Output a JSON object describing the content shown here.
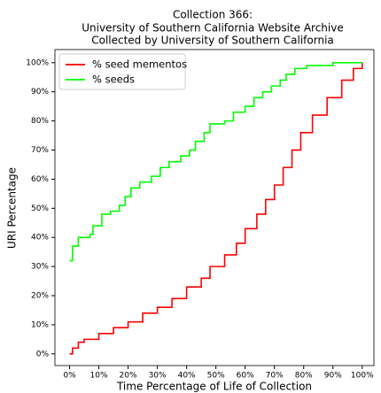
{
  "chart_data": {
    "type": "step",
    "title": [
      "Collection 366:",
      "University of Southern California Website Archive",
      "Collected by University of Southern California"
    ],
    "xlabel": "Time Percentage of Life of Collection",
    "ylabel": "URI Percentage",
    "xlim": [
      -5,
      104
    ],
    "ylim": [
      -4,
      104.5
    ],
    "xticks": [
      {
        "value": 0,
        "label": "0%"
      },
      {
        "value": 10,
        "label": "10%"
      },
      {
        "value": 20,
        "label": "20%"
      },
      {
        "value": 30,
        "label": "30%"
      },
      {
        "value": 40,
        "label": "40%"
      },
      {
        "value": 50,
        "label": "50%"
      },
      {
        "value": 60,
        "label": "60%"
      },
      {
        "value": 70,
        "label": "70%"
      },
      {
        "value": 80,
        "label": "80%"
      },
      {
        "value": 90,
        "label": "90%"
      },
      {
        "value": 100,
        "label": "100%"
      }
    ],
    "yticks": [
      {
        "value": 0,
        "label": "0%"
      },
      {
        "value": 10,
        "label": "10%"
      },
      {
        "value": 20,
        "label": "20%"
      },
      {
        "value": 30,
        "label": "30%"
      },
      {
        "value": 40,
        "label": "40%"
      },
      {
        "value": 50,
        "label": "50%"
      },
      {
        "value": 60,
        "label": "60%"
      },
      {
        "value": 70,
        "label": "70%"
      },
      {
        "value": 80,
        "label": "80%"
      },
      {
        "value": 90,
        "label": "90%"
      },
      {
        "value": 100,
        "label": "100%"
      }
    ],
    "legend": "upper left",
    "series": [
      {
        "name": "% seed mementos",
        "color": "#ff0000",
        "x": [
          0,
          1,
          3,
          5,
          10,
          15,
          20,
          25,
          30,
          35,
          40,
          45,
          48,
          53,
          57,
          60,
          64,
          67,
          70,
          73,
          76,
          79,
          83,
          88,
          93,
          97,
          100
        ],
        "values": [
          0,
          2,
          4,
          5,
          7,
          9,
          11,
          14,
          16,
          19,
          23,
          26,
          30,
          34,
          38,
          43,
          48,
          53,
          58,
          64,
          70,
          76,
          82,
          88,
          94,
          98,
          100
        ]
      },
      {
        "name": "% seeds",
        "color": "#00ff00",
        "x": [
          0,
          1,
          3,
          7,
          8,
          11,
          14,
          17,
          19,
          21,
          24,
          28,
          31,
          34,
          38,
          41,
          43,
          46,
          48,
          53,
          56,
          60,
          63,
          66,
          69,
          72,
          74,
          77,
          81,
          90,
          100
        ],
        "values": [
          32,
          37,
          40,
          41,
          44,
          48,
          49,
          51,
          54,
          57,
          59,
          61,
          64,
          66,
          68,
          70,
          73,
          76,
          79,
          80,
          83,
          85,
          88,
          90,
          92,
          94,
          96,
          98,
          99,
          100,
          100
        ]
      }
    ]
  }
}
